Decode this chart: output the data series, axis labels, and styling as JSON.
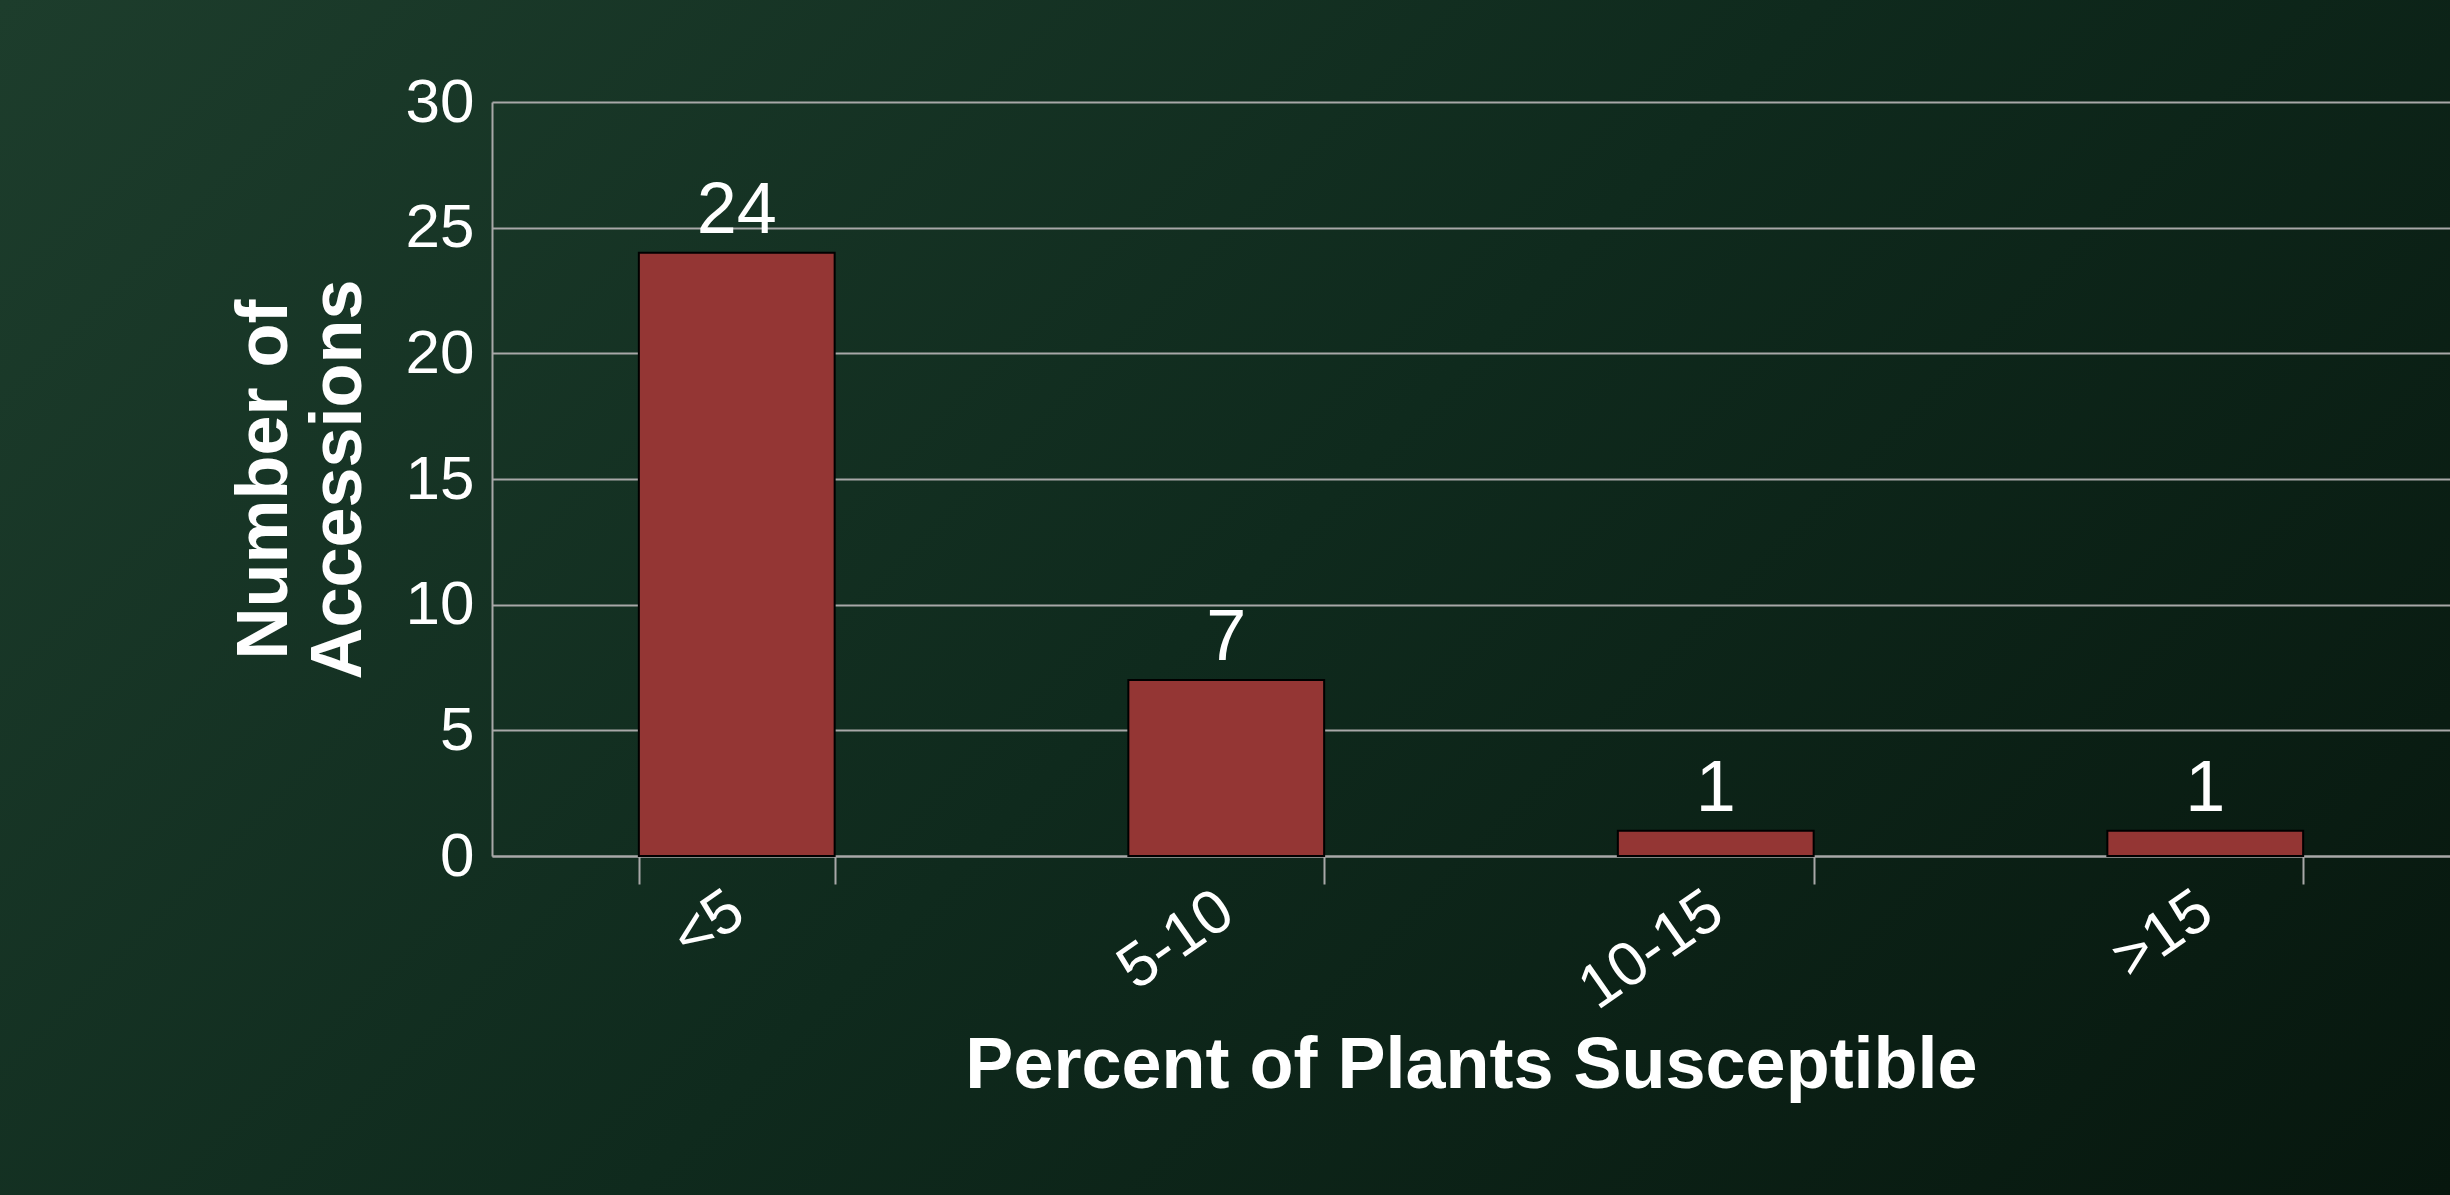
{
  "chart_data": {
    "type": "bar",
    "xlabel": "Percent of Plants Susceptible",
    "ylabel": "Number of Accessions",
    "categories": [
      "<5",
      "5-10",
      "10-15",
      ">15"
    ],
    "series": [
      {
        "color": "#943634",
        "values": [
          24,
          7,
          1,
          1
        ]
      }
    ],
    "ylim": [
      0,
      30
    ],
    "yticks": [
      0,
      5,
      10,
      15,
      20,
      25,
      30
    ],
    "grid": "y",
    "data_labels": true
  }
}
